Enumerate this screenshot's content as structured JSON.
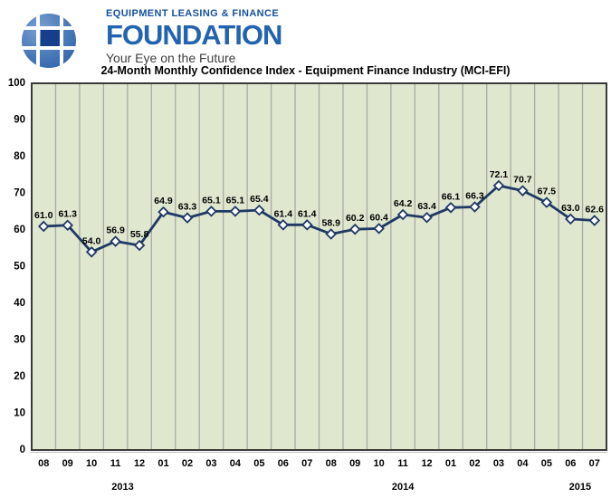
{
  "header": {
    "org_line1": "EQUIPMENT LEASING & FINANCE",
    "org_name": "FOUNDATION",
    "tagline": "Your Eye on the Future"
  },
  "colors": {
    "brand_blue": "#2264af",
    "logo_dark_blue": "#17519e",
    "logo_globe_fill": "#4a7ab8",
    "logo_globe_center": "#163e8c",
    "line": "#1f3864",
    "marker_fill": "#ffffff",
    "plot_bg": "#dfe7cf",
    "grid": "#a8aba3",
    "plot_border": "#3a3a3a",
    "label_text": "#000000"
  },
  "chart_data": {
    "type": "line",
    "title": "24-Month Monthly Confidence Index - Equipment Finance Industry (MCI-EFI)",
    "series_name": "MCI-EFI",
    "categories": [
      "08",
      "09",
      "10",
      "11",
      "12",
      "01",
      "02",
      "03",
      "04",
      "05",
      "06",
      "07",
      "08",
      "09",
      "10",
      "11",
      "12",
      "01",
      "02",
      "03",
      "04",
      "05",
      "06",
      "07"
    ],
    "values": [
      61.0,
      61.3,
      54.0,
      56.9,
      55.8,
      64.9,
      63.3,
      65.1,
      65.1,
      65.4,
      61.4,
      61.4,
      58.9,
      60.2,
      60.4,
      64.2,
      63.4,
      66.1,
      66.3,
      72.1,
      70.7,
      67.5,
      63.0,
      62.6
    ],
    "data_labels": [
      "61.0",
      "61.3",
      "54.0",
      "56.9",
      "55.8",
      "64.9",
      "63.3",
      "65.1",
      "65.1",
      "65.4",
      "61.4",
      "61.4",
      "58.9",
      "60.2",
      "60.4",
      "64.2",
      "63.4",
      "66.1",
      "66.3",
      "72.1",
      "70.7",
      "67.5",
      "63.0",
      "62.6"
    ],
    "year_labels": [
      {
        "label": "2013",
        "month_index": 3.3
      },
      {
        "label": "2014",
        "month_index": 15.0
      },
      {
        "label": "2015",
        "month_index": 22.4
      }
    ],
    "xlabel": "",
    "ylabel": "",
    "ylim": [
      0,
      100
    ],
    "yticks": [
      0,
      10,
      20,
      30,
      40,
      50,
      60,
      70,
      80,
      90,
      100
    ],
    "grid": "vertical-only",
    "legend": "none",
    "marker": "diamond"
  }
}
